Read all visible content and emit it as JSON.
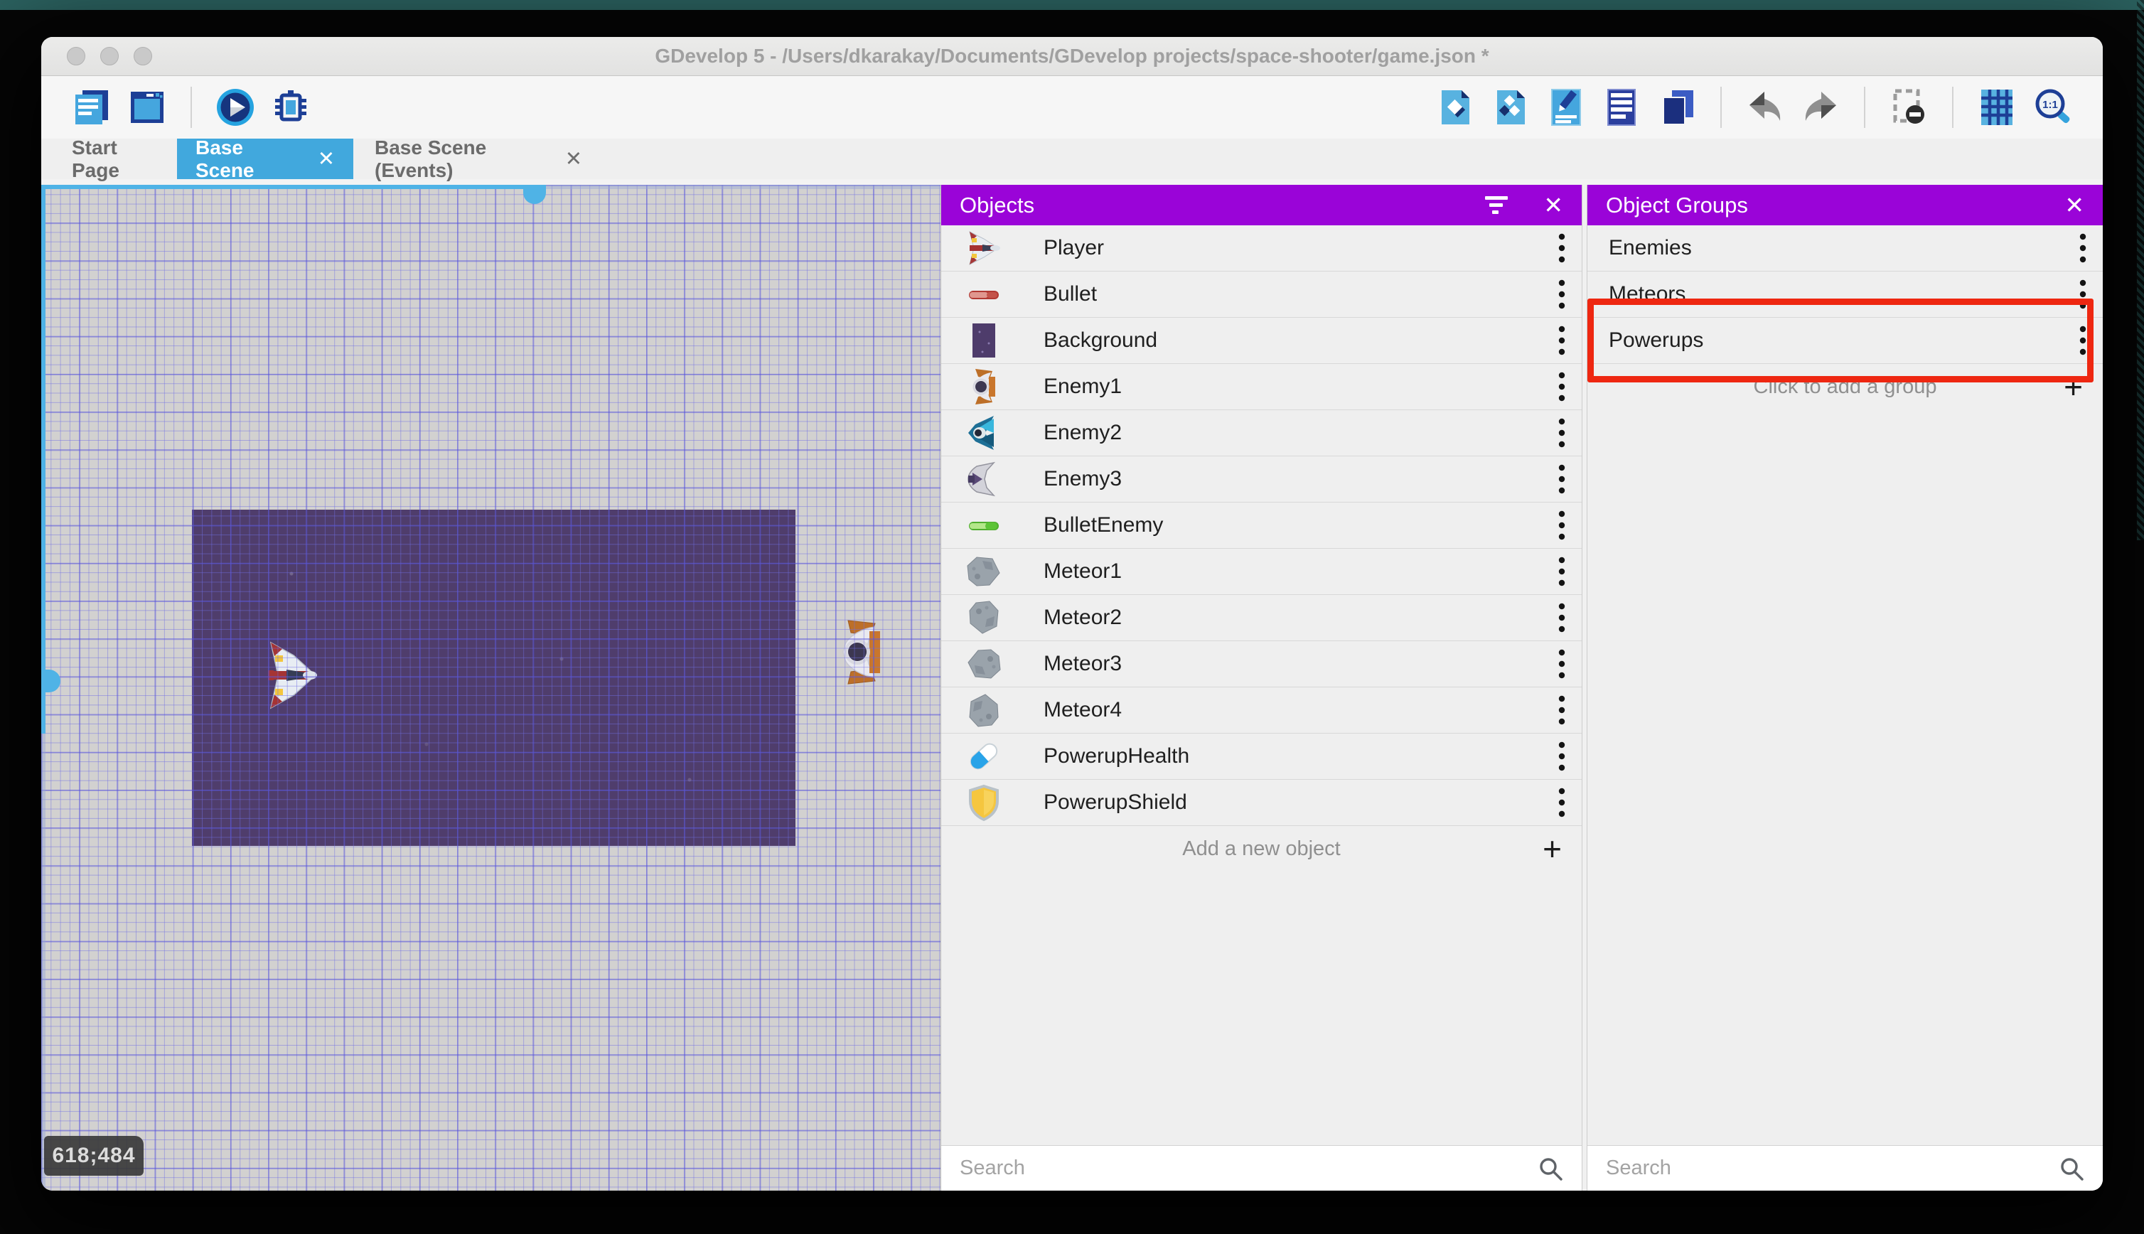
{
  "window": {
    "title": "GDevelop 5 - /Users/dkarakay/Documents/GDevelop projects/space-shooter/game.json *"
  },
  "toolbar": {
    "left_icons": [
      "project-manager-icon",
      "preview-window-icon",
      "play-icon",
      "debug-icon"
    ],
    "right_icons": [
      "objects-icon",
      "object-groups-icon",
      "properties-icon",
      "instances-list-icon",
      "layers-icon",
      "undo-icon",
      "redo-icon",
      "render-options-icon",
      "grid-icon",
      "zoom-1to1-icon"
    ]
  },
  "tabs": [
    {
      "label": "Start Page",
      "active": false,
      "closable": false
    },
    {
      "label": "Base Scene",
      "active": true,
      "closable": true
    },
    {
      "label": "Base Scene (Events)",
      "active": false,
      "closable": true
    }
  ],
  "canvas": {
    "coordinates": "618;484"
  },
  "objects_panel": {
    "title": "Objects",
    "items": [
      {
        "name": "Player",
        "icon": "player-ship-icon"
      },
      {
        "name": "Bullet",
        "icon": "bullet-icon"
      },
      {
        "name": "Background",
        "icon": "background-icon"
      },
      {
        "name": "Enemy1",
        "icon": "enemy1-ship-icon"
      },
      {
        "name": "Enemy2",
        "icon": "enemy2-ship-icon"
      },
      {
        "name": "Enemy3",
        "icon": "enemy3-ship-icon"
      },
      {
        "name": "BulletEnemy",
        "icon": "enemy-bullet-icon"
      },
      {
        "name": "Meteor1",
        "icon": "meteor-icon"
      },
      {
        "name": "Meteor2",
        "icon": "meteor-icon"
      },
      {
        "name": "Meteor3",
        "icon": "meteor-icon"
      },
      {
        "name": "Meteor4",
        "icon": "meteor-icon"
      },
      {
        "name": "PowerupHealth",
        "icon": "powerup-health-icon"
      },
      {
        "name": "PowerupShield",
        "icon": "powerup-shield-icon"
      }
    ],
    "add_label": "Add a new object",
    "search_placeholder": "Search"
  },
  "groups_panel": {
    "title": "Object Groups",
    "items": [
      {
        "name": "Enemies",
        "highlighted": false
      },
      {
        "name": "Meteors",
        "highlighted": false
      },
      {
        "name": "Powerups",
        "highlighted": true
      }
    ],
    "add_label": "Click to add a group",
    "search_placeholder": "Search"
  },
  "colors": {
    "panel_header": "#9a04d8",
    "active_tab": "#41a8dd",
    "highlight_red": "#ee2711",
    "scrollbar": "#4fb3e6"
  }
}
